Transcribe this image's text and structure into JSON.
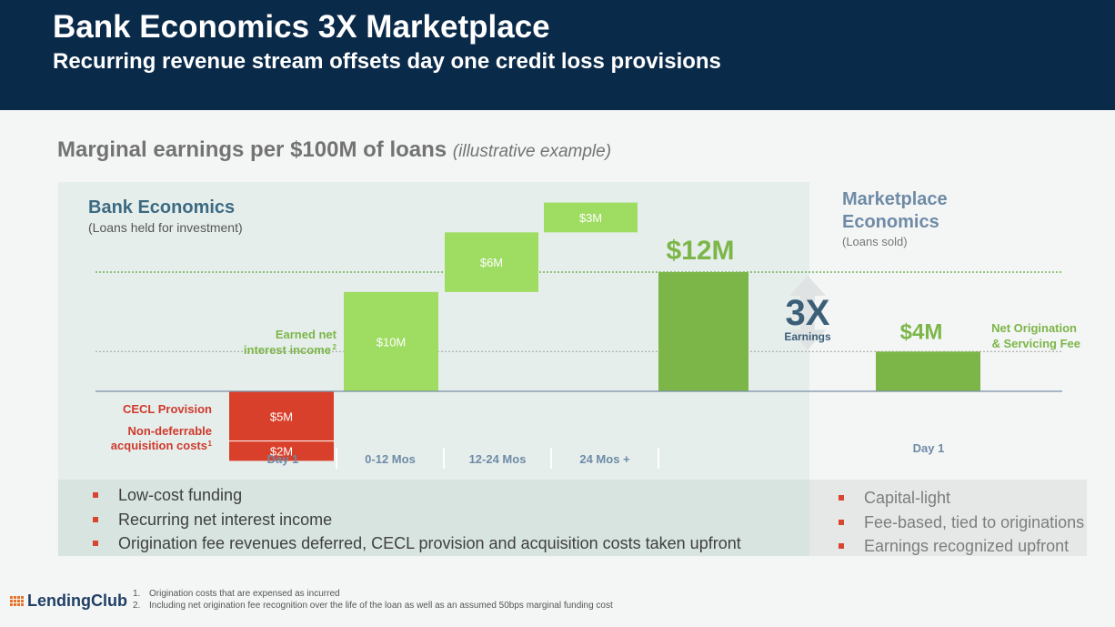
{
  "header": {
    "title": "Bank Economics 3X Marketplace",
    "subtitle": "Recurring revenue stream offsets day one credit loss provisions"
  },
  "section": {
    "title": "Marginal earnings per $100M of loans",
    "title_note": "(illustrative example)"
  },
  "bank": {
    "heading": "Bank Economics",
    "subheading": "(Loans held for investment)",
    "bullets": [
      "Low-cost funding",
      "Recurring net interest income",
      "Origination fee revenues deferred, CECL provision and acquisition costs taken upfront"
    ]
  },
  "marketplace": {
    "heading_line1": "Marketplace",
    "heading_line2": "Economics",
    "subheading": "(Loans sold)",
    "bullets": [
      "Capital-light",
      "Fee-based, tied to originations",
      "Earnings recognized upfront"
    ]
  },
  "chart_data": {
    "type": "bar",
    "units": "$M",
    "bank_waterfall": {
      "categories": [
        "Day 1",
        "0-12 Mos",
        "12-24 Mos",
        "24 Mos +"
      ],
      "cecl_provision": {
        "label": "CECL Provision",
        "value": -5,
        "value_label": "$5M"
      },
      "acquisition_costs": {
        "label": "Non-deferrable acquisition costs",
        "footnote_ref": "1",
        "value": -2,
        "value_label": "$2M"
      },
      "net_interest_income": {
        "label": "Earned net interest income",
        "footnote_ref": "2",
        "values": [
          10,
          6,
          3
        ],
        "value_labels": [
          "$10M",
          "$6M",
          "$3M"
        ]
      },
      "total": {
        "value": 12,
        "value_label": "$12M"
      }
    },
    "marketplace": {
      "category": "Day 1",
      "label": "Net Origination & Servicing Fee",
      "value": 4,
      "value_label": "$4M"
    },
    "comparison": {
      "label": "3X",
      "sublabel": "Earnings"
    },
    "colors": {
      "negative": "#d9402b",
      "positive_light": "#9fdc62",
      "positive_dark": "#7cb648",
      "label_green": "#7cb648",
      "label_red": "#d0392b",
      "comparison_text": "#3c5f78"
    }
  },
  "footer": {
    "logo": "LendingClub",
    "footnotes": [
      {
        "num": "1.",
        "text": "Origination costs that are expensed as incurred"
      },
      {
        "num": "2.",
        "text": "Including net origination fee recognition over the life of the loan as well as an assumed 50bps marginal funding cost"
      }
    ]
  }
}
